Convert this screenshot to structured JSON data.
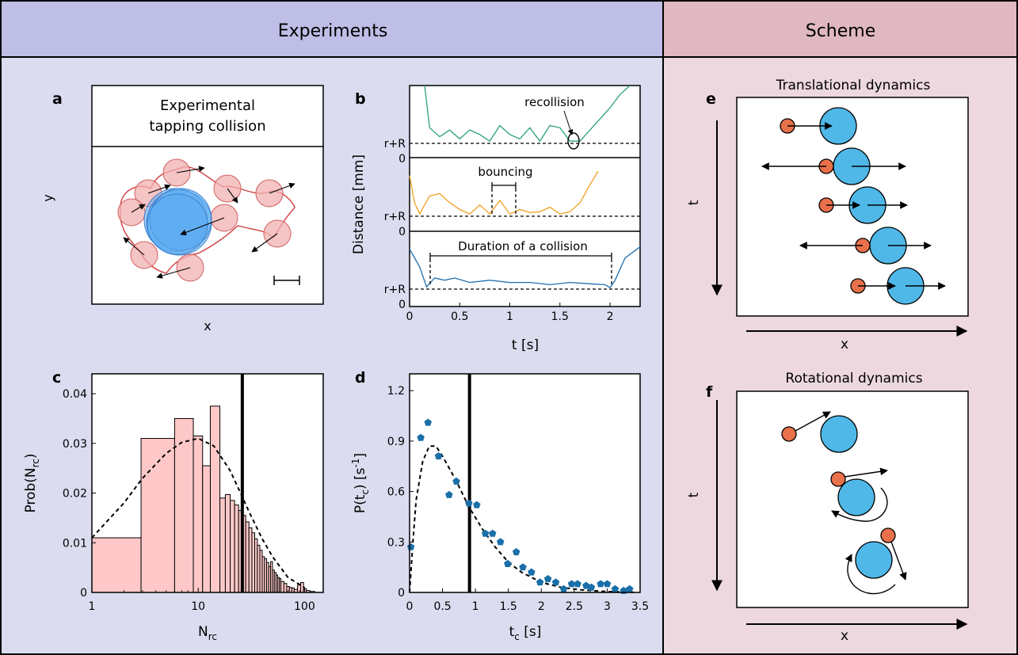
{
  "header": {
    "experiments_title": "Experiments",
    "scheme_title": "Scheme"
  },
  "colors": {
    "experiments_bg": "#dcdcf0",
    "experiments_header_bg": "#bebee6",
    "scheme_bg": "#ecd8de",
    "scheme_header_bg": "#dfb8c2",
    "green_trace": "#2ca07a",
    "orange_trace": "#f0a020",
    "blue_trace": "#1f6fb0",
    "hist_fill": "#ffc8c8",
    "small_particle": "#e8704a",
    "large_particle": "#50b8e8",
    "pentagon": "#1a6fa8"
  },
  "panel_a": {
    "letter": "a",
    "title_line1": "Experimental",
    "title_line2": "tapping collision",
    "xlabel": "x",
    "ylabel": "y"
  },
  "panel_b": {
    "letter": "b",
    "ylabel": "Distance [mm]",
    "xlabel": "t [s]",
    "annotations": [
      "recollision",
      "bouncing",
      "Duration of a collision"
    ],
    "r_plus_R": "r+R",
    "zero": "0",
    "xticks": [
      "0",
      "0.5",
      "1",
      "1.5",
      "2"
    ]
  },
  "panel_c": {
    "letter": "c",
    "ylabel_main": "Prob(N",
    "ylabel_sub": "rc",
    "ylabel_end": ")",
    "xlabel_main": "N",
    "xlabel_sub": "rc",
    "yticks": [
      "0",
      "0.01",
      "0.02",
      "0.03",
      "0.04"
    ],
    "xticks": [
      "1",
      "10",
      "100"
    ]
  },
  "panel_d": {
    "letter": "d",
    "ylabel_main": "P(t",
    "ylabel_sub": "c",
    "ylabel_mid": ") [s",
    "ylabel_sup": "-1",
    "ylabel_end": "]",
    "xlabel_main": "t",
    "xlabel_sub": "c",
    "xlabel_end": " [s]",
    "yticks": [
      "0",
      "0.3",
      "0.6",
      "0.9",
      "1.2"
    ],
    "xticks": [
      "0",
      "0.5",
      "1",
      "1.5",
      "2",
      "2.5",
      "3",
      "3.5"
    ]
  },
  "panel_e": {
    "letter": "e",
    "title": "Translational dynamics",
    "xlabel": "x",
    "ylabel": "t"
  },
  "panel_f": {
    "letter": "f",
    "title": "Rotational dynamics",
    "xlabel": "x",
    "ylabel": "t"
  },
  "chart_data": [
    {
      "type": "bar",
      "panel": "c",
      "x_scale": "log",
      "xlim": [
        1,
        150
      ],
      "ylim": [
        0,
        0.044
      ],
      "bins": [
        {
          "x0": 1,
          "x1": 2.9,
          "value": 0.011
        },
        {
          "x0": 2.9,
          "x1": 6,
          "value": 0.031
        },
        {
          "x0": 6,
          "x1": 9,
          "value": 0.035
        },
        {
          "x0": 9,
          "x1": 11,
          "value": 0.0315
        },
        {
          "x0": 11,
          "x1": 13,
          "value": 0.0255
        },
        {
          "x0": 13,
          "x1": 16,
          "value": 0.0375
        },
        {
          "x0": 16,
          "x1": 18,
          "value": 0.019
        },
        {
          "x0": 18,
          "x1": 20,
          "value": 0.0197
        },
        {
          "x0": 20,
          "x1": 22,
          "value": 0.0185
        },
        {
          "x0": 22,
          "x1": 24,
          "value": 0.0176
        },
        {
          "x0": 24,
          "x1": 26,
          "value": 0.0165
        },
        {
          "x0": 26,
          "x1": 28,
          "value": 0.0155
        },
        {
          "x0": 28,
          "x1": 30,
          "value": 0.0142
        },
        {
          "x0": 30,
          "x1": 32,
          "value": 0.013
        },
        {
          "x0": 32,
          "x1": 34,
          "value": 0.012
        },
        {
          "x0": 34,
          "x1": 36,
          "value": 0.0108
        },
        {
          "x0": 36,
          "x1": 38,
          "value": 0.0095
        },
        {
          "x0": 38,
          "x1": 40,
          "value": 0.0085
        },
        {
          "x0": 40,
          "x1": 42,
          "value": 0.0072
        },
        {
          "x0": 42,
          "x1": 44,
          "value": 0.0068
        },
        {
          "x0": 44,
          "x1": 46,
          "value": 0.006
        },
        {
          "x0": 46,
          "x1": 48,
          "value": 0.0052
        },
        {
          "x0": 48,
          "x1": 50,
          "value": 0.0062
        },
        {
          "x0": 50,
          "x1": 52,
          "value": 0.0045
        },
        {
          "x0": 52,
          "x1": 54,
          "value": 0.004
        },
        {
          "x0": 54,
          "x1": 56,
          "value": 0.0035
        },
        {
          "x0": 56,
          "x1": 58,
          "value": 0.003
        },
        {
          "x0": 58,
          "x1": 60,
          "value": 0.0028
        },
        {
          "x0": 60,
          "x1": 64,
          "value": 0.0022
        },
        {
          "x0": 64,
          "x1": 68,
          "value": 0.0018
        },
        {
          "x0": 68,
          "x1": 72,
          "value": 0.0012
        },
        {
          "x0": 72,
          "x1": 76,
          "value": 0.001
        },
        {
          "x0": 76,
          "x1": 80,
          "value": 0.0009
        },
        {
          "x0": 80,
          "x1": 86,
          "value": 0.0006
        },
        {
          "x0": 86,
          "x1": 92,
          "value": 0.0015
        },
        {
          "x0": 92,
          "x1": 98,
          "value": 0.002
        },
        {
          "x0": 98,
          "x1": 104,
          "value": 0.0008
        },
        {
          "x0": 104,
          "x1": 112,
          "value": 0.0004
        },
        {
          "x0": 112,
          "x1": 125,
          "value": 0.0002
        }
      ],
      "fit_curve": [
        [
          1,
          0.011
        ],
        [
          2,
          0.018
        ],
        [
          3,
          0.023
        ],
        [
          5,
          0.028
        ],
        [
          7,
          0.0302
        ],
        [
          10,
          0.031
        ],
        [
          14,
          0.0295
        ],
        [
          20,
          0.0245
        ],
        [
          25,
          0.02
        ],
        [
          30,
          0.0163
        ],
        [
          40,
          0.0108
        ],
        [
          50,
          0.0072
        ],
        [
          70,
          0.003
        ],
        [
          100,
          0.001
        ]
      ],
      "vertical_line_x": 26
    },
    {
      "type": "scatter",
      "panel": "d",
      "xlim": [
        0,
        3.5
      ],
      "ylim": [
        0,
        1.3
      ],
      "points": [
        [
          0.02,
          0.27
        ],
        [
          0.17,
          0.92
        ],
        [
          0.28,
          1.01
        ],
        [
          0.44,
          0.81
        ],
        [
          0.6,
          0.58
        ],
        [
          0.71,
          0.66
        ],
        [
          0.9,
          0.53
        ],
        [
          1.02,
          0.52
        ],
        [
          1.15,
          0.35
        ],
        [
          1.26,
          0.35
        ],
        [
          1.38,
          0.3
        ],
        [
          1.49,
          0.17
        ],
        [
          1.62,
          0.24
        ],
        [
          1.72,
          0.15
        ],
        [
          1.85,
          0.12
        ],
        [
          1.98,
          0.06
        ],
        [
          2.1,
          0.08
        ],
        [
          2.22,
          0.06
        ],
        [
          2.34,
          0.02
        ],
        [
          2.46,
          0.05
        ],
        [
          2.55,
          0.05
        ],
        [
          2.68,
          0.04
        ],
        [
          2.76,
          0.03
        ],
        [
          2.9,
          0.05
        ],
        [
          3.0,
          0.05
        ],
        [
          3.12,
          0.02
        ],
        [
          3.25,
          0.01
        ],
        [
          3.34,
          0.02
        ]
      ],
      "fit_curve": [
        [
          0,
          0
        ],
        [
          0.05,
          0.3
        ],
        [
          0.1,
          0.55
        ],
        [
          0.2,
          0.78
        ],
        [
          0.3,
          0.87
        ],
        [
          0.4,
          0.87
        ],
        [
          0.5,
          0.81
        ],
        [
          0.7,
          0.67
        ],
        [
          0.9,
          0.51
        ],
        [
          1.1,
          0.38
        ],
        [
          1.3,
          0.27
        ],
        [
          1.5,
          0.18
        ],
        [
          1.7,
          0.12
        ],
        [
          2.0,
          0.06
        ],
        [
          2.3,
          0.03
        ],
        [
          2.6,
          0.015
        ],
        [
          3.0,
          0.005
        ],
        [
          3.4,
          0.001
        ]
      ],
      "vertical_line_x": 0.91
    },
    {
      "type": "line",
      "panel": "b",
      "xlim": [
        0,
        2.3
      ],
      "series": [
        {
          "trace": "top",
          "x": [
            0.15,
            0.2,
            0.3,
            0.4,
            0.5,
            0.6,
            0.7,
            0.8,
            0.9,
            1.0,
            1.1,
            1.2,
            1.3,
            1.4,
            1.5,
            1.6,
            1.7,
            1.8,
            1.9,
            2.0,
            2.1,
            2.2
          ],
          "y": [
            1.3,
            0.35,
            0.15,
            0.3,
            0.1,
            0.3,
            0.2,
            0.05,
            0.4,
            0.2,
            0.1,
            0.35,
            0.05,
            0.4,
            0.35,
            0.05,
            0.05,
            0.3,
            0.55,
            0.8,
            1.1,
            1.5
          ]
        },
        {
          "trace": "middle",
          "x": [
            0.0,
            0.05,
            0.1,
            0.2,
            0.3,
            0.4,
            0.5,
            0.6,
            0.7,
            0.8,
            0.9,
            1.0,
            1.1,
            1.2,
            1.3,
            1.4,
            1.5,
            1.6,
            1.7,
            1.8,
            1.88
          ],
          "y": [
            0.9,
            0.3,
            0.05,
            0.45,
            0.5,
            0.3,
            0.15,
            0.05,
            0.25,
            0.05,
            0.35,
            0.05,
            0.15,
            0.08,
            0.1,
            0.2,
            0.05,
            0.1,
            0.3,
            0.7,
            1.0
          ]
        },
        {
          "trace": "bottom",
          "x": [
            0.0,
            0.1,
            0.17,
            0.25,
            0.35,
            0.45,
            0.6,
            0.8,
            1.0,
            1.2,
            1.4,
            1.6,
            1.8,
            1.95,
            2.0,
            2.05,
            2.15,
            2.3
          ],
          "y": [
            0.9,
            0.5,
            0.05,
            0.25,
            0.2,
            0.25,
            0.15,
            0.2,
            0.15,
            0.15,
            0.1,
            0.15,
            0.12,
            0.1,
            0.03,
            0.2,
            0.7,
            0.95
          ]
        }
      ]
    }
  ]
}
